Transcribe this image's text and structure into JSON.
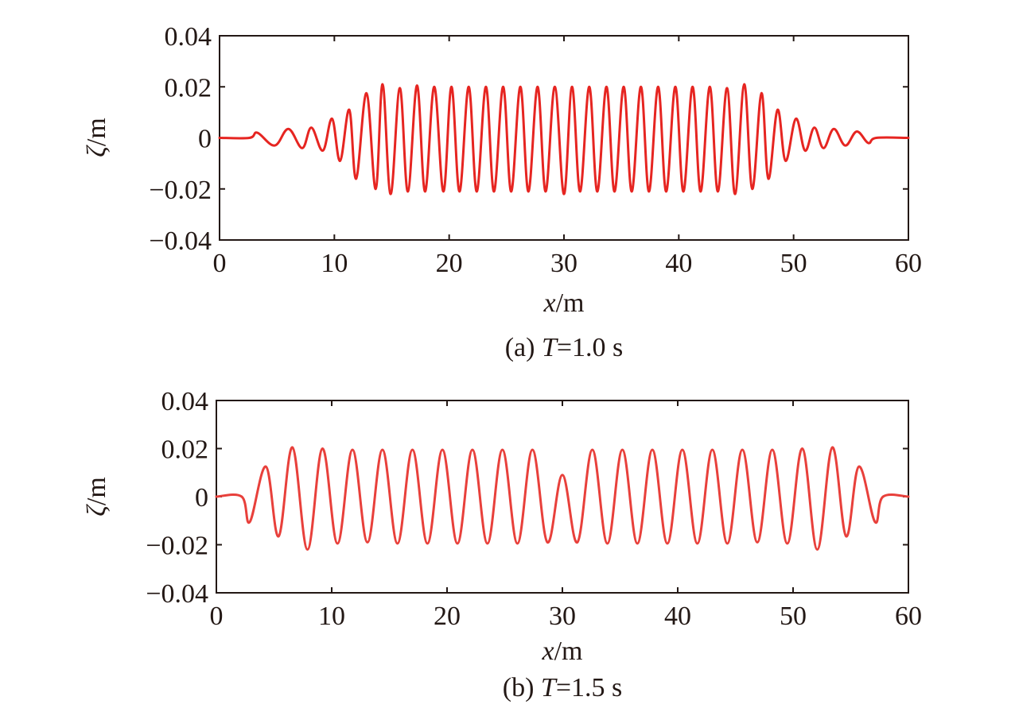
{
  "chart_data": [
    {
      "type": "line",
      "caption": {
        "prefix": "(a) ",
        "var": "T",
        "rest": "=1.0 s"
      },
      "xlabel": {
        "var": "x",
        "unit": "/m"
      },
      "ylabel": {
        "var": "ζ",
        "unit": "/m"
      },
      "xlim": [
        0,
        60
      ],
      "ylim": [
        -0.04,
        0.04
      ],
      "xticks": [
        0,
        10,
        20,
        30,
        40,
        50,
        60
      ],
      "xtick_labels": [
        "0",
        "10",
        "20",
        "30",
        "40",
        "50",
        "60"
      ],
      "yticks": [
        0.04,
        0.02,
        0,
        -0.02,
        -0.04
      ],
      "ytick_labels": [
        "0.04",
        "0.02",
        "0",
        "−0.02",
        "−0.04"
      ],
      "grid": false,
      "series": [
        {
          "color": "#e62521",
          "x": [
            0,
            2.6,
            3.3,
            4.8,
            6.0,
            7.2,
            8.0,
            9.0,
            9.8,
            10.5,
            11.3,
            11.9,
            12.8,
            13.6,
            14.2,
            14.9,
            15.7,
            16.4,
            17.2,
            17.9,
            18.7,
            19.5,
            20.2,
            20.9,
            21.7,
            22.4,
            23.2,
            23.9,
            24.7,
            25.4,
            26.2,
            26.9,
            27.7,
            28.4,
            29.2,
            30.0,
            30.7,
            31.4,
            32.2,
            32.9,
            33.7,
            34.4,
            35.2,
            35.9,
            36.7,
            37.4,
            38.2,
            38.9,
            39.7,
            40.4,
            41.2,
            41.9,
            42.7,
            43.4,
            44.2,
            44.9,
            45.7,
            46.4,
            47.2,
            47.8,
            48.6,
            49.3,
            50.2,
            51.0,
            51.8,
            52.6,
            53.5,
            54.5,
            55.5,
            56.5,
            57.2,
            60
          ],
          "y": [
            0,
            0,
            0.002,
            -0.003,
            0.0035,
            -0.004,
            0.004,
            -0.005,
            0.0075,
            -0.009,
            0.011,
            -0.016,
            0.0175,
            -0.02,
            0.021,
            -0.022,
            0.0195,
            -0.021,
            0.0205,
            -0.021,
            0.02,
            -0.021,
            0.02,
            -0.021,
            0.02,
            -0.021,
            0.02,
            -0.021,
            0.02,
            -0.021,
            0.02,
            -0.021,
            0.02,
            -0.021,
            0.02,
            -0.022,
            0.02,
            -0.021,
            0.02,
            -0.021,
            0.02,
            -0.021,
            0.02,
            -0.021,
            0.02,
            -0.021,
            0.02,
            -0.021,
            0.02,
            -0.021,
            0.02,
            -0.021,
            0.02,
            -0.021,
            0.0195,
            -0.022,
            0.021,
            -0.02,
            0.0175,
            -0.016,
            0.011,
            -0.009,
            0.0075,
            -0.005,
            0.004,
            -0.004,
            0.0035,
            -0.003,
            0.0025,
            -0.002,
            0,
            0
          ]
        }
      ]
    },
    {
      "type": "line",
      "caption": {
        "prefix": "(b) ",
        "var": "T",
        "rest": "=1.5 s"
      },
      "xlabel": {
        "var": "x",
        "unit": "/m"
      },
      "ylabel": {
        "var": "ζ",
        "unit": "/m"
      },
      "xlim": [
        0,
        60
      ],
      "ylim": [
        -0.04,
        0.04
      ],
      "xticks": [
        0,
        10,
        20,
        30,
        40,
        50,
        60
      ],
      "xtick_labels": [
        "0",
        "10",
        "20",
        "30",
        "40",
        "50",
        "60"
      ],
      "yticks": [
        0.04,
        0.02,
        0,
        -0.02,
        -0.04
      ],
      "ytick_labels": [
        "0.04",
        "0.02",
        "0",
        "−0.02",
        "−0.04"
      ],
      "grid": false,
      "series": [
        {
          "color": "#e8403b",
          "x": [
            0,
            2.2,
            2.9,
            4.3,
            5.4,
            6.6,
            7.9,
            9.2,
            10.5,
            11.8,
            13.1,
            14.4,
            15.7,
            17.0,
            18.3,
            19.6,
            20.9,
            22.2,
            23.5,
            24.8,
            26.1,
            27.4,
            28.7,
            30.0,
            31.3,
            32.6,
            33.9,
            35.2,
            36.5,
            37.8,
            39.1,
            40.4,
            41.7,
            43.0,
            44.3,
            45.6,
            46.9,
            48.2,
            49.5,
            50.8,
            52.1,
            53.4,
            54.6,
            55.7,
            57.1,
            57.8,
            60
          ],
          "y": [
            0,
            0,
            -0.0105,
            0.0125,
            -0.0165,
            0.0205,
            -0.022,
            0.02,
            -0.0195,
            0.0195,
            -0.019,
            0.0195,
            -0.0195,
            0.0195,
            -0.0195,
            0.0195,
            -0.0195,
            0.0195,
            -0.0195,
            0.0195,
            -0.0195,
            0.0195,
            -0.019,
            0.009,
            -0.019,
            0.0195,
            -0.0195,
            0.0195,
            -0.0195,
            0.0195,
            -0.0195,
            0.0195,
            -0.0195,
            0.0195,
            -0.0195,
            0.0195,
            -0.019,
            0.0195,
            -0.0195,
            0.02,
            -0.022,
            0.0205,
            -0.0165,
            0.0125,
            -0.0105,
            0,
            0
          ]
        }
      ]
    }
  ]
}
